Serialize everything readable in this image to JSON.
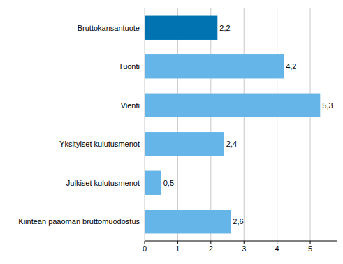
{
  "chart_data": {
    "type": "bar",
    "orientation": "horizontal",
    "categories": [
      "Bruttokansantuote",
      "Tuonti",
      "Vienti",
      "Yksityiset kulutusmenot",
      "Julkiset kulutusmenot",
      "Kiinteän pääoman bruttomuodostus"
    ],
    "values": [
      2.2,
      4.2,
      5.3,
      2.4,
      0.5,
      2.6
    ],
    "value_labels": [
      "2,2",
      "4,2",
      "5,3",
      "2,4",
      "0,5",
      "2,6"
    ],
    "colors": [
      "#0073b0",
      "#66b5e8",
      "#66b5e8",
      "#66b5e8",
      "#66b5e8",
      "#66b5e8"
    ],
    "xlim": [
      0,
      5.8
    ],
    "xticks": [
      0,
      1,
      2,
      3,
      4,
      5
    ],
    "grid": true,
    "data_labels": true
  }
}
